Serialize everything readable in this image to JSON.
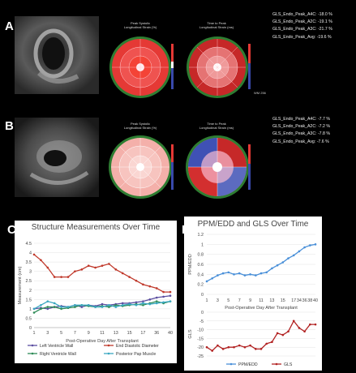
{
  "panels": {
    "a": {
      "letter": "A"
    },
    "b": {
      "letter": "B"
    },
    "c": {
      "letter": "C"
    },
    "d": {
      "letter": "D"
    }
  },
  "row_a": {
    "bullseye1_title": "Peak Systolic\nLongitudinal Strain (%)",
    "bullseye2_title": "Time to Peak\nLongitudinal Strain (ms)",
    "gls": [
      "GLS_Endo_Peak_A4C: -18.0 %",
      "GLS_Endo_Peak_A2C: -19.1 %",
      "GLS_Endo_Peak_A3C: -21.7 %",
      "GLS_Endo_Peak_Avg: -19.6 %"
    ],
    "wm_label": "WM 256"
  },
  "row_b": {
    "bullseye1_title": "Peak Systolic\nLongitudinal Strain (%)",
    "bullseye2_title": "Time to Peak\nLongitudinal Strain (ms)",
    "gls": [
      "GLS_Endo_Peak_A4C: -7.7 %",
      "GLS_Endo_Peak_A2C: -7.2 %",
      "GLS_Endo_Peak_A3C: -7.8 %",
      "GLS_Endo_Peak_Avg: -7.6 %"
    ]
  },
  "chart_data": [
    {
      "type": "line",
      "title": "Structure Measurements Over Time",
      "xlabel": "Post-Operative Day After Transplant",
      "ylabel": "Measurement (cm)",
      "categories": [
        "1",
        "2",
        "3",
        "4",
        "5",
        "6",
        "7",
        "8",
        "9",
        "10",
        "11",
        "12",
        "13",
        "14",
        "15",
        "16",
        "17",
        "34",
        "36",
        "38",
        "40"
      ],
      "x_tick_labels": [
        "1",
        "3",
        "5",
        "7",
        "9",
        "11",
        "13",
        "15",
        "17",
        "36",
        "40"
      ],
      "ylim": [
        0,
        4.5
      ],
      "yticks": [
        "0",
        "0.5",
        "1",
        "1.5",
        "2",
        "2.5",
        "3",
        "3.5",
        "4",
        "4.5"
      ],
      "series": [
        {
          "name": "Left Ventricle Wall",
          "color": "#5b4ea0",
          "values": [
            1.0,
            1.05,
            1.0,
            1.1,
            1.15,
            1.1,
            1.2,
            1.1,
            1.2,
            1.15,
            1.25,
            1.2,
            1.25,
            1.3,
            1.3,
            1.35,
            1.4,
            1.5,
            1.6,
            1.65,
            1.7
          ]
        },
        {
          "name": "End Diastolic Diameter",
          "color": "#c0392b",
          "values": [
            3.9,
            3.6,
            3.2,
            2.7,
            2.7,
            2.7,
            3.0,
            3.1,
            3.3,
            3.2,
            3.3,
            3.4,
            3.1,
            2.9,
            2.7,
            2.5,
            2.3,
            2.2,
            2.1,
            1.9,
            1.9
          ]
        },
        {
          "name": "Right Ventricle Wall",
          "color": "#2e8b57",
          "values": [
            0.8,
            1.0,
            1.1,
            1.1,
            1.0,
            1.05,
            1.1,
            1.2,
            1.15,
            1.1,
            1.15,
            1.1,
            1.2,
            1.15,
            1.2,
            1.25,
            1.2,
            1.3,
            1.4,
            1.3,
            1.4
          ]
        },
        {
          "name": "Posterior Pap Muscle",
          "color": "#3aa8c1",
          "values": [
            1.0,
            1.2,
            1.4,
            1.3,
            1.1,
            1.1,
            1.2,
            1.2,
            1.2,
            1.1,
            1.1,
            1.2,
            1.1,
            1.2,
            1.25,
            1.2,
            1.3,
            1.25,
            1.3,
            1.35,
            1.4
          ]
        }
      ],
      "legend": "bottom",
      "grid": true
    },
    {
      "type": "line",
      "title": "PPM/EDD and GLS Over Time",
      "xlabel": "Post-Operative Day After Transplant",
      "categories": [
        "1",
        "2",
        "3",
        "4",
        "5",
        "6",
        "7",
        "8",
        "9",
        "10",
        "11",
        "12",
        "13",
        "14",
        "15",
        "16",
        "17",
        "34",
        "36",
        "38",
        "40"
      ],
      "x_tick_labels": [
        "1",
        "3",
        "5",
        "7",
        "9",
        "11",
        "13",
        "15",
        "17",
        "34",
        "36",
        "38",
        "40"
      ],
      "top": {
        "ylabel": "PPM/EDD",
        "ylim": [
          0,
          1.2
        ],
        "yticks": [
          "0",
          "0.2",
          "0.4",
          "0.6",
          "0.8",
          "1",
          "1.2"
        ],
        "series": [
          {
            "name": "PPM/EDD",
            "color": "#4a90d9",
            "values": [
              0.26,
              0.32,
              0.38,
              0.42,
              0.44,
              0.4,
              0.42,
              0.38,
              0.4,
              0.38,
              0.42,
              0.44,
              0.52,
              0.58,
              0.64,
              0.72,
              0.78,
              0.86,
              0.94,
              0.98,
              1.0
            ]
          }
        ]
      },
      "bottom": {
        "ylabel": "GLS",
        "ylim": [
          -25,
          0
        ],
        "yticks": [
          "0",
          "-5",
          "-10",
          "-15",
          "-20",
          "-25"
        ],
        "series": [
          {
            "name": "GLS",
            "color": "#b22222",
            "values": [
              -20,
              -22,
              -19,
              -21,
              -20,
              -20,
              -19,
              -20,
              -19,
              -21,
              -21,
              -18,
              -17,
              -12,
              -13,
              -11,
              -5,
              -9,
              -11,
              -7,
              -7
            ]
          }
        ]
      },
      "legend": "bottom",
      "grid": true
    }
  ]
}
